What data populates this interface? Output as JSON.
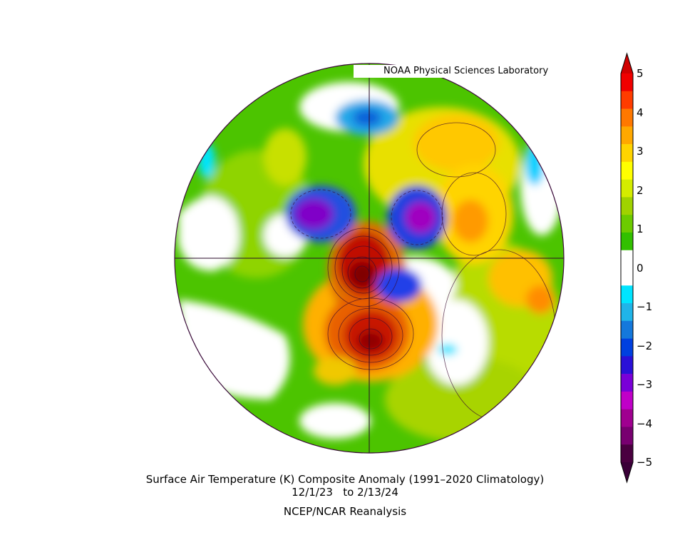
{
  "credit": "NOAA Physical Sciences Laboratory",
  "title": "Surface Air Temperature (K) Composite Anomaly (1991–2020 Climatology)",
  "dates": "12/1/23   to 2/13/24",
  "source": "NCEP/NCAR Reanalysis",
  "colorbar": {
    "labels": [
      "5",
      "4",
      "3",
      "2",
      "1",
      "0",
      "−1",
      "−2",
      "−3",
      "−4",
      "−5"
    ],
    "colors": [
      "#f00000",
      "#ff3c00",
      "#ff7800",
      "#ffa800",
      "#ffd400",
      "#ffff00",
      "#d4ec00",
      "#a0d200",
      "#6ccb00",
      "#32c000",
      "#ffffff",
      "#ffffff",
      "#00e4ff",
      "#20b4e8",
      "#1478dc",
      "#0040e0",
      "#2a10d8",
      "#7a00d8",
      "#c000c8",
      "#a00090",
      "#780070",
      "#4a0040"
    ],
    "tip_top": "#d00000",
    "tip_bottom": "#3a0038"
  }
}
